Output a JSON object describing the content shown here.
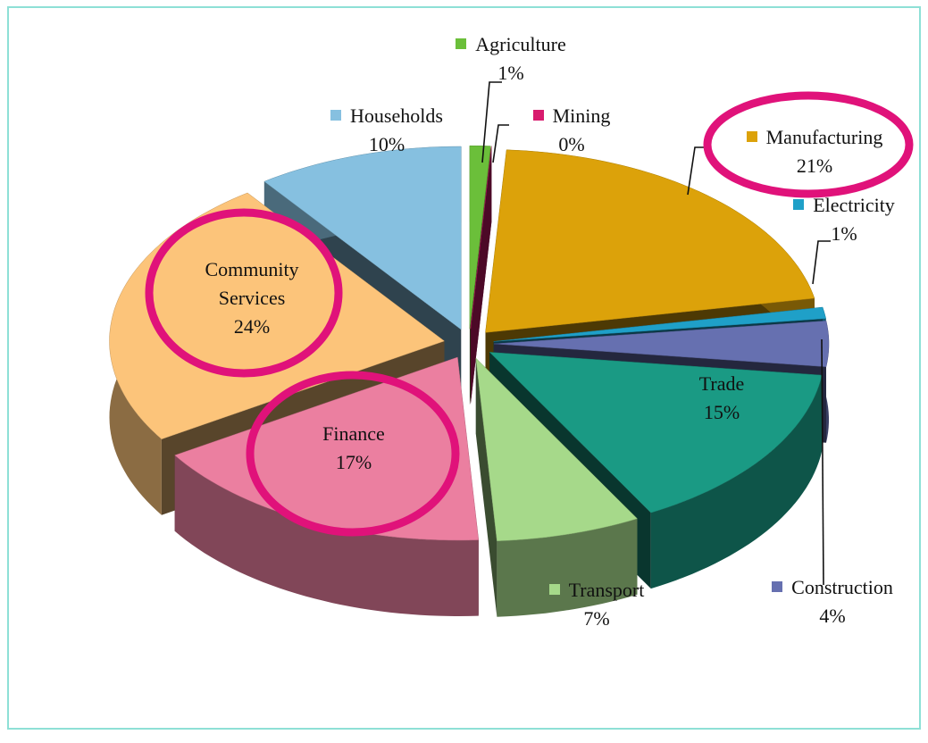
{
  "chart_data": {
    "type": "pie",
    "categories": [
      "Agriculture",
      "Mining",
      "Manufacturing",
      "Electricity",
      "Construction",
      "Trade",
      "Transport",
      "Finance",
      "Community Services",
      "Households"
    ],
    "values": [
      1,
      0,
      21,
      1,
      4,
      15,
      7,
      17,
      24,
      10
    ],
    "value_labels": [
      "1%",
      "0%",
      "21%",
      "1%",
      "4%",
      "15%",
      "7%",
      "17%",
      "24%",
      "10%"
    ],
    "colors": [
      "#6bbf3a",
      "#d81b6e",
      "#dca20a",
      "#1fa0c8",
      "#6670b0",
      "#1a9a84",
      "#a6d98a",
      "#eb7fa0",
      "#fcc47a",
      "#86c0e0"
    ]
  }
}
